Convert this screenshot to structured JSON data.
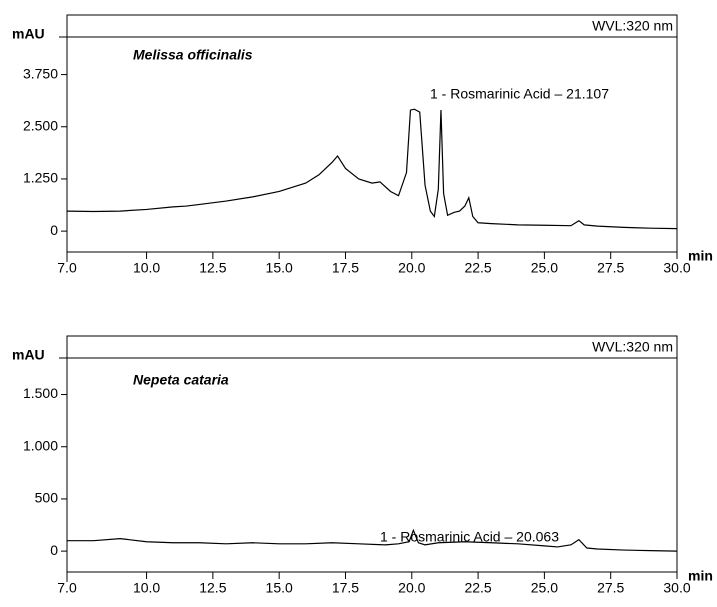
{
  "chart_data": [
    {
      "type": "line",
      "title": "Melissa officinalis",
      "subtitle": "WVL:320 nm",
      "annotation": "1 - Rosmarinic Acid – 21.107",
      "ylabel": "mAU",
      "xlabel": "min",
      "xlim": [
        7,
        30
      ],
      "ylim": [
        -500,
        4650
      ],
      "xticks": [
        {
          "value": 7,
          "label": "7.0"
        },
        {
          "value": 10,
          "label": "10.0"
        },
        {
          "value": 12.5,
          "label": "12.5"
        },
        {
          "value": 15,
          "label": "15.0"
        },
        {
          "value": 17.5,
          "label": "17.5"
        },
        {
          "value": 20,
          "label": "20.0"
        },
        {
          "value": 22.5,
          "label": "22.5"
        },
        {
          "value": 25,
          "label": "25.0"
        },
        {
          "value": 27.5,
          "label": "27.5"
        },
        {
          "value": 30,
          "label": "30.0"
        }
      ],
      "yticks": [
        0,
        {
          "value": 1250,
          "label": "1.250"
        },
        {
          "value": 2500,
          "label": "2.500"
        },
        {
          "value": 3750,
          "label": "3.750"
        }
      ],
      "x": [
        7,
        8,
        9,
        10,
        11,
        11.5,
        12,
        13,
        14,
        15,
        16,
        16.5,
        17,
        17.2,
        17.5,
        18,
        18.5,
        18.8,
        19.2,
        19.5,
        19.8,
        19.95,
        20.1,
        20.3,
        20.5,
        20.7,
        20.85,
        21.0,
        21.1,
        21.2,
        21.35,
        21.6,
        21.8,
        22.0,
        22.15,
        22.3,
        22.5,
        23,
        24,
        25,
        26,
        26.3,
        26.5,
        27,
        28,
        29,
        30
      ],
      "series": [
        {
          "color": "#000000",
          "values": [
            480,
            470,
            480,
            520,
            580,
            600,
            640,
            720,
            820,
            950,
            1150,
            1350,
            1650,
            1800,
            1500,
            1250,
            1150,
            1180,
            950,
            850,
            1400,
            2900,
            2920,
            2850,
            1100,
            480,
            350,
            1000,
            2900,
            900,
            380,
            450,
            480,
            600,
            800,
            350,
            200,
            180,
            150,
            140,
            130,
            250,
            150,
            120,
            90,
            70,
            60
          ]
        }
      ]
    },
    {
      "type": "line",
      "title": "Nepeta cataria",
      "subtitle": "WVL:320 nm",
      "annotation": "1 - Rosmarinic Acid – 20.063",
      "ylabel": "mAU",
      "xlabel": "min",
      "xlim": [
        7,
        30
      ],
      "ylim": [
        -200,
        1850
      ],
      "xticks": [
        {
          "value": 7,
          "label": "7.0"
        },
        {
          "value": 10,
          "label": "10.0"
        },
        {
          "value": 12.5,
          "label": "12.5"
        },
        {
          "value": 15,
          "label": "15.0"
        },
        {
          "value": 17.5,
          "label": "17.5"
        },
        {
          "value": 20,
          "label": "20.0"
        },
        {
          "value": 22.5,
          "label": "22.5"
        },
        {
          "value": 25,
          "label": "25.0"
        },
        {
          "value": 27.5,
          "label": "27.5"
        },
        {
          "value": 30,
          "label": "30.0"
        }
      ],
      "yticks": [
        0,
        500,
        {
          "value": 1000,
          "label": "1.000"
        },
        {
          "value": 1500,
          "label": "1.500"
        }
      ],
      "x": [
        7,
        8,
        9,
        10,
        11,
        12,
        13,
        14,
        15,
        16,
        17,
        18,
        19,
        19.5,
        19.9,
        20.06,
        20.25,
        20.5,
        21,
        22,
        23,
        24,
        25,
        25.5,
        26,
        26.3,
        26.6,
        27,
        28,
        29,
        30
      ],
      "series": [
        {
          "color": "#000000",
          "values": [
            100,
            100,
            120,
            90,
            80,
            80,
            70,
            80,
            70,
            70,
            80,
            70,
            60,
            70,
            90,
            200,
            80,
            60,
            80,
            90,
            80,
            70,
            50,
            40,
            60,
            110,
            30,
            20,
            10,
            5,
            0
          ]
        }
      ]
    }
  ]
}
